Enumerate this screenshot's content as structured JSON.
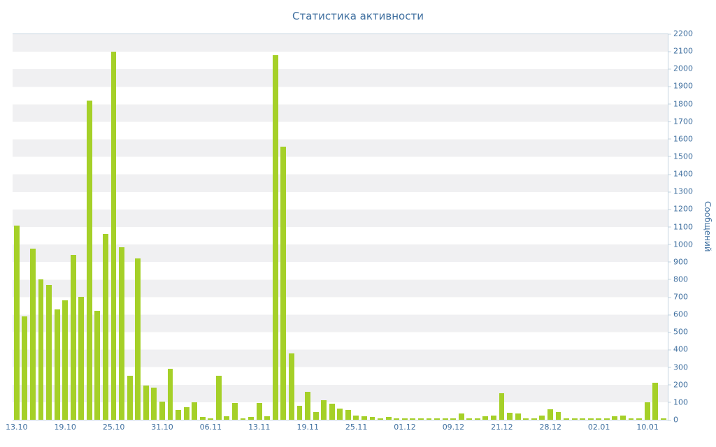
{
  "chart_data": {
    "type": "bar",
    "title": "Статистика активности",
    "ylabel_right": "Сообщений",
    "xlabel": "",
    "ylim": [
      0,
      2200
    ],
    "ytick_step": 100,
    "grid": "horizontal-bands",
    "legend": "none",
    "bar_color": "#a5d028",
    "colors": {
      "text": "#3f6f9f",
      "axis_line": "#c3d3df",
      "band": "#f0f0f2",
      "background": "#ffffff"
    },
    "values": [
      1110,
      590,
      975,
      800,
      770,
      630,
      680,
      940,
      700,
      1820,
      620,
      1060,
      2100,
      985,
      250,
      920,
      195,
      185,
      105,
      290,
      55,
      70,
      100,
      15,
      10,
      250,
      20,
      95,
      10,
      15,
      95,
      20,
      2080,
      1560,
      380,
      80,
      160,
      45,
      110,
      90,
      65,
      55,
      25,
      20,
      15,
      10,
      15,
      8,
      5,
      10,
      5,
      8,
      3,
      5,
      10,
      35,
      8,
      5,
      20,
      25,
      150,
      40,
      35,
      10,
      5,
      25,
      60,
      45,
      5,
      8,
      10,
      5,
      8,
      5,
      20,
      25,
      5,
      3,
      100,
      210,
      8
    ],
    "x_tick_labels": [
      {
        "index": 0,
        "label": "13.10"
      },
      {
        "index": 6,
        "label": "19.10"
      },
      {
        "index": 12,
        "label": "25.10"
      },
      {
        "index": 18,
        "label": "31.10"
      },
      {
        "index": 24,
        "label": "06.11"
      },
      {
        "index": 30,
        "label": "13.11"
      },
      {
        "index": 36,
        "label": "19.11"
      },
      {
        "index": 42,
        "label": "25.11"
      },
      {
        "index": 48,
        "label": "01.12"
      },
      {
        "index": 54,
        "label": "09.12"
      },
      {
        "index": 60,
        "label": "21.12"
      },
      {
        "index": 66,
        "label": "28.12"
      },
      {
        "index": 72,
        "label": "02.01"
      },
      {
        "index": 78,
        "label": "10.01"
      }
    ]
  }
}
